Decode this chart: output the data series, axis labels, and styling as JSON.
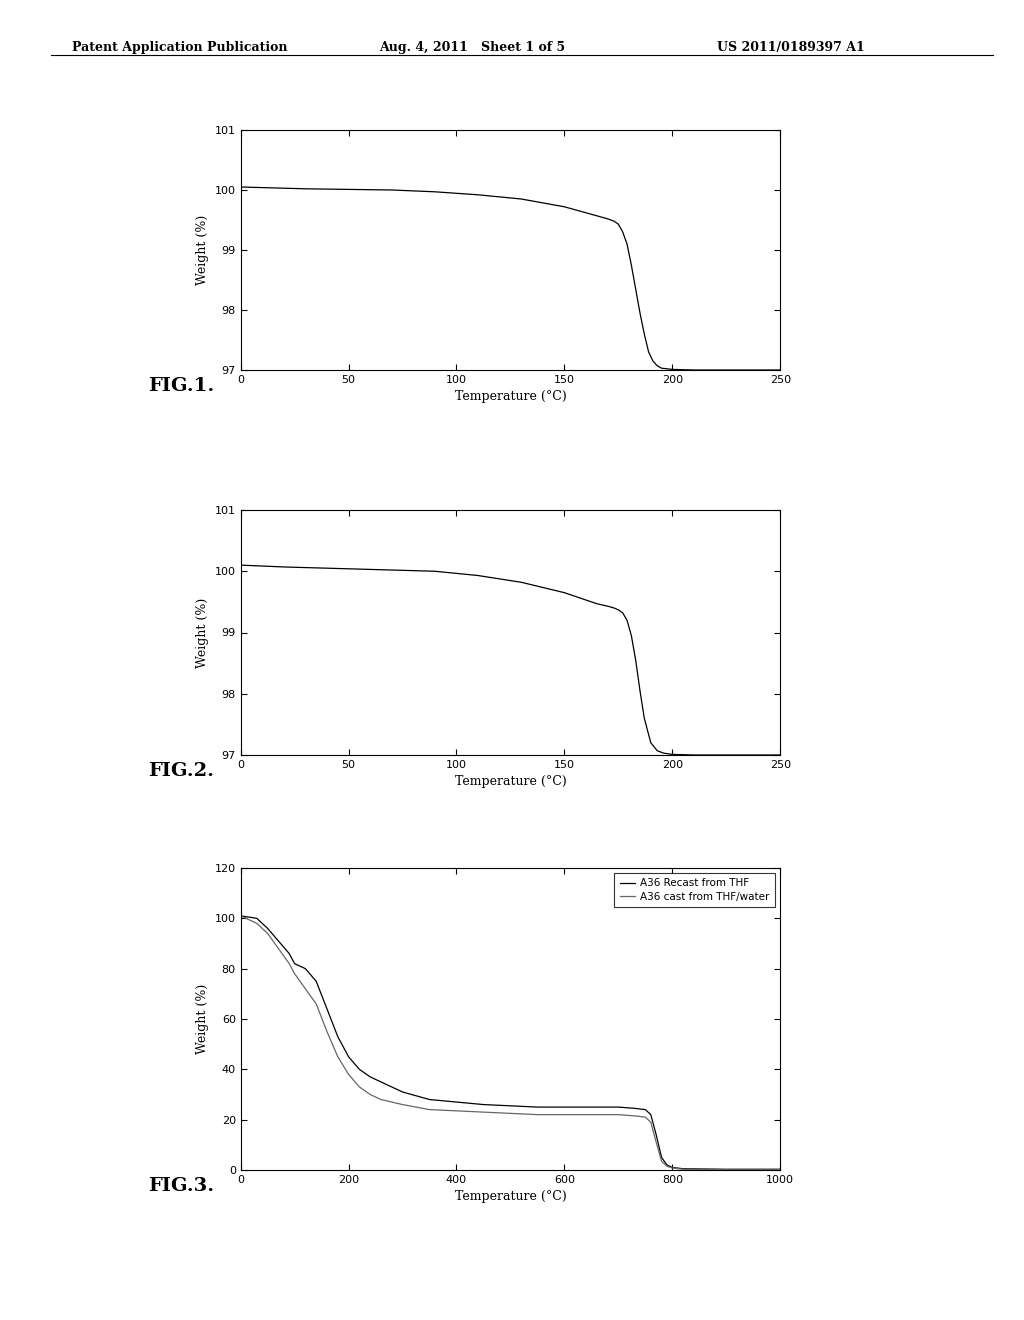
{
  "header_left": "Patent Application Publication",
  "header_mid": "Aug. 4, 2011   Sheet 1 of 5",
  "header_right": "US 2011/0189397 A1",
  "fig1_label": "FIG.1.",
  "fig2_label": "FIG.2.",
  "fig3_label": "FIG.3.",
  "fig1": {
    "xlabel": "Temperature (°C)",
    "ylabel": "Weight (%)",
    "xlim": [
      0,
      250
    ],
    "ylim": [
      97,
      101
    ],
    "yticks": [
      97,
      98,
      99,
      100,
      101
    ],
    "xticks": [
      0,
      50,
      100,
      150,
      200,
      250
    ],
    "curve": {
      "x": [
        0,
        20,
        30,
        50,
        70,
        90,
        110,
        130,
        150,
        160,
        165,
        170,
        173,
        175,
        177,
        179,
        181,
        183,
        185,
        187,
        189,
        191,
        193,
        195,
        200,
        210,
        230,
        250
      ],
      "y": [
        100.05,
        100.03,
        100.02,
        100.01,
        100.0,
        99.97,
        99.92,
        99.85,
        99.72,
        99.62,
        99.57,
        99.52,
        99.48,
        99.43,
        99.3,
        99.1,
        98.75,
        98.35,
        97.95,
        97.6,
        97.3,
        97.15,
        97.07,
        97.03,
        97.01,
        97.0,
        97.0,
        97.0
      ]
    }
  },
  "fig2": {
    "xlabel": "Temperature (°C)",
    "ylabel": "Weight (%)",
    "xlim": [
      0,
      250
    ],
    "ylim": [
      97,
      101
    ],
    "yticks": [
      97,
      98,
      99,
      100,
      101
    ],
    "xticks": [
      0,
      50,
      100,
      150,
      200,
      250
    ],
    "curve": {
      "x": [
        0,
        20,
        30,
        50,
        70,
        90,
        110,
        130,
        150,
        160,
        165,
        170,
        173,
        175,
        177,
        179,
        181,
        183,
        185,
        187,
        190,
        193,
        196,
        200,
        210,
        230,
        250
      ],
      "y": [
        100.1,
        100.07,
        100.06,
        100.04,
        100.02,
        100.0,
        99.93,
        99.82,
        99.65,
        99.53,
        99.47,
        99.43,
        99.4,
        99.37,
        99.32,
        99.2,
        98.95,
        98.55,
        98.05,
        97.6,
        97.2,
        97.07,
        97.03,
        97.01,
        97.0,
        97.0,
        97.0
      ]
    }
  },
  "fig3": {
    "xlabel": "Temperature (°C)",
    "ylabel": "Weight (%)",
    "xlim": [
      0,
      1000
    ],
    "ylim": [
      0,
      120
    ],
    "yticks": [
      0,
      20,
      40,
      60,
      80,
      100,
      120
    ],
    "xticks": [
      0,
      200,
      400,
      600,
      800,
      1000
    ],
    "legend": [
      "A36 Recast from THF",
      "A36 cast from THF/water"
    ],
    "curve1": {
      "x": [
        0,
        30,
        50,
        70,
        90,
        100,
        120,
        140,
        160,
        180,
        200,
        220,
        240,
        260,
        280,
        300,
        350,
        400,
        450,
        500,
        550,
        600,
        650,
        700,
        730,
        750,
        760,
        770,
        780,
        790,
        800,
        820,
        900,
        1000
      ],
      "y": [
        101,
        100,
        96,
        91,
        86,
        82,
        80,
        75,
        64,
        53,
        45,
        40,
        37,
        35,
        33,
        31,
        28,
        27,
        26,
        25.5,
        25,
        25,
        25,
        25,
        24.5,
        24,
        22,
        14,
        5,
        2,
        1,
        0.5,
        0.3,
        0.3
      ]
    },
    "curve2": {
      "x": [
        0,
        30,
        50,
        70,
        90,
        100,
        120,
        140,
        160,
        180,
        200,
        220,
        240,
        260,
        280,
        300,
        350,
        400,
        450,
        500,
        550,
        600,
        650,
        700,
        730,
        750,
        760,
        770,
        780,
        790,
        800,
        820,
        900,
        1000
      ],
      "y": [
        101,
        98,
        94,
        88,
        82,
        78,
        72,
        66,
        55,
        45,
        38,
        33,
        30,
        28,
        27,
        26,
        24,
        23.5,
        23,
        22.5,
        22,
        22,
        22,
        22,
        21.5,
        21,
        19,
        11,
        3.5,
        1.5,
        0.8,
        0.3,
        0.1,
        0.1
      ]
    }
  },
  "background_color": "#ffffff",
  "line_color": "#000000"
}
